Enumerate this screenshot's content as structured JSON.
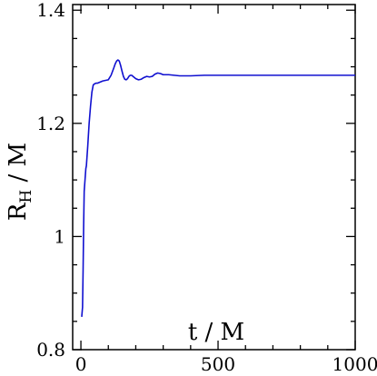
{
  "chart_data": {
    "type": "line",
    "title": "",
    "xlabel": "t / M",
    "ylabel_main": "R",
    "ylabel_sub": "H",
    "ylabel_suffix": " / M",
    "xlim": [
      -30,
      1000
    ],
    "ylim": [
      0.8,
      1.41
    ],
    "xticks": [
      0,
      500,
      1000
    ],
    "xtick_labels": [
      "0",
      "500",
      "1000"
    ],
    "yticks": [
      0.8,
      1.0,
      1.2,
      1.4
    ],
    "ytick_labels": [
      "0.8",
      "1",
      "1.2",
      "1.4"
    ],
    "grid": false,
    "series": [
      {
        "color": "#1010d0",
        "x": [
          3,
          6,
          8,
          10,
          12,
          15,
          18,
          20,
          25,
          30,
          35,
          40,
          45,
          50,
          55,
          60,
          70,
          80,
          90,
          100,
          110,
          120,
          125,
          130,
          135,
          140,
          145,
          150,
          155,
          160,
          165,
          170,
          175,
          180,
          185,
          190,
          200,
          210,
          220,
          230,
          240,
          250,
          260,
          270,
          280,
          290,
          300,
          320,
          340,
          360,
          380,
          400,
          450,
          500,
          550,
          600,
          700,
          800,
          900,
          1000
        ],
        "y": [
          0.858,
          0.875,
          0.94,
          1.02,
          1.08,
          1.1,
          1.12,
          1.125,
          1.16,
          1.2,
          1.23,
          1.255,
          1.268,
          1.27,
          1.271,
          1.271,
          1.273,
          1.275,
          1.276,
          1.277,
          1.285,
          1.298,
          1.305,
          1.31,
          1.312,
          1.31,
          1.302,
          1.292,
          1.283,
          1.278,
          1.277,
          1.279,
          1.283,
          1.285,
          1.285,
          1.283,
          1.279,
          1.277,
          1.278,
          1.281,
          1.283,
          1.282,
          1.283,
          1.287,
          1.289,
          1.288,
          1.286,
          1.286,
          1.285,
          1.284,
          1.284,
          1.284,
          1.285,
          1.285,
          1.285,
          1.285,
          1.285,
          1.285,
          1.285,
          1.285
        ]
      }
    ]
  }
}
